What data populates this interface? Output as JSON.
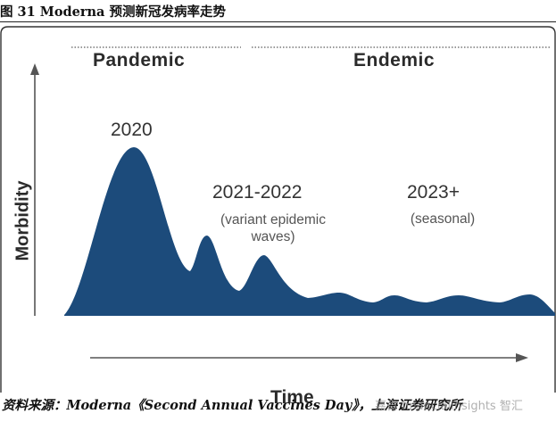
{
  "figure": {
    "title": "图 31 Moderna 预测新冠发病率走势",
    "source": "资料来源：Moderna《Second Annual Vaccines Day》，上海证券研究所",
    "watermark": "嘉肯 financialinsights 智汇"
  },
  "diagram": {
    "phases": [
      "Pandemic",
      "Endemic"
    ],
    "y_axis_label": "Morbidity",
    "x_axis_label": "Time",
    "annotations": {
      "y2020": "2020",
      "y2021_2022": "2021-2022",
      "y2021_2022_note_line1": "(variant epidemic",
      "y2021_2022_note_line2": "waves)",
      "y2023": "2023+",
      "y2023_note": "(seasonal)"
    },
    "colors": {
      "curve_fill": "#1c4b7b",
      "axis": "#555555",
      "dotted_separator": "#999999",
      "panel_border": "#333333"
    }
  }
}
